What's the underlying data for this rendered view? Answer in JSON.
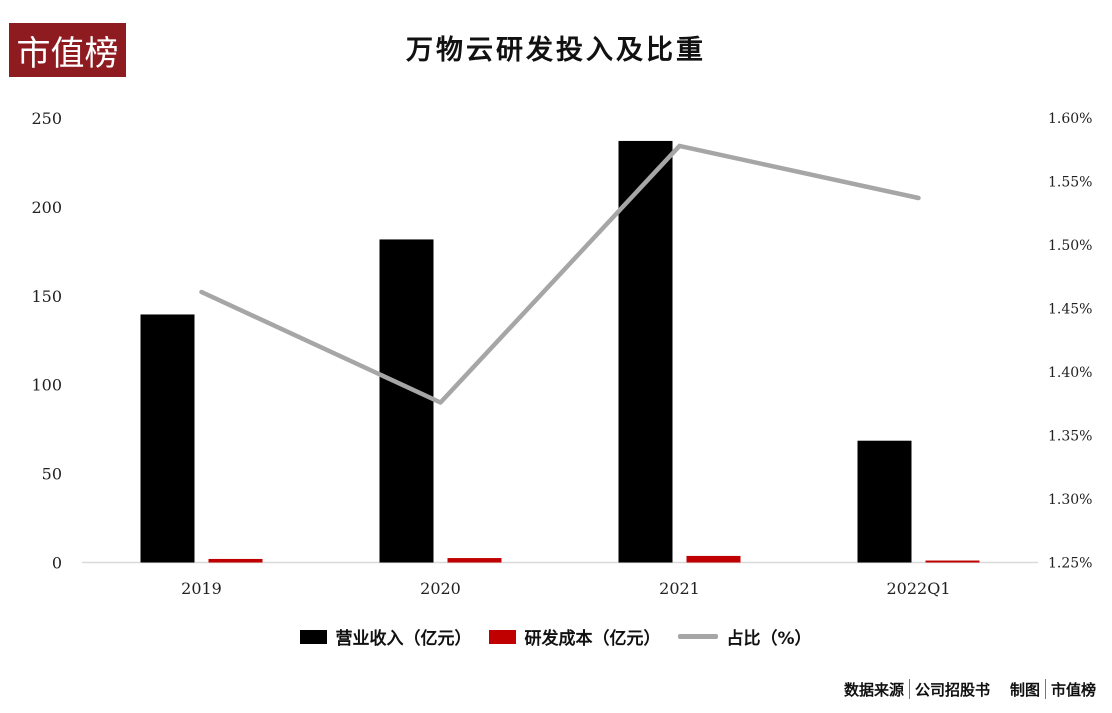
{
  "logo": {
    "text": "市值榜"
  },
  "title": "万物云研发投入及比重",
  "chart_data": {
    "type": "bar",
    "title": "万物云研发投入及比重",
    "categories": [
      "2019",
      "2020",
      "2021",
      "2022Q1"
    ],
    "series": [
      {
        "name": "营业收入（亿元）",
        "kind": "bar",
        "axis": "left",
        "color": "#000000",
        "values": [
          139.5,
          181.7,
          237.1,
          68.5
        ]
      },
      {
        "name": "研发成本（亿元）",
        "kind": "bar",
        "axis": "left",
        "color": "#c00000",
        "values": [
          2.0,
          2.5,
          3.7,
          1.1
        ]
      },
      {
        "name": "占比（%）",
        "kind": "line",
        "axis": "right",
        "color": "#a6a6a6",
        "values": [
          1.463,
          1.376,
          1.578,
          1.537
        ]
      }
    ],
    "left_axis": {
      "min": 0,
      "max": 250,
      "ticks": [
        "0",
        "50",
        "100",
        "150",
        "200",
        "250"
      ]
    },
    "right_axis": {
      "min": 1.25,
      "max": 1.6,
      "ticks": [
        "1.25%",
        "1.30%",
        "1.35%",
        "1.40%",
        "1.45%",
        "1.50%",
        "1.55%",
        "1.60%"
      ]
    },
    "grid": false,
    "legend_position": "bottom"
  },
  "source": {
    "label": "数据来源",
    "value": "公司招股书",
    "credit_label": "制图",
    "credit_value": "市值榜"
  }
}
